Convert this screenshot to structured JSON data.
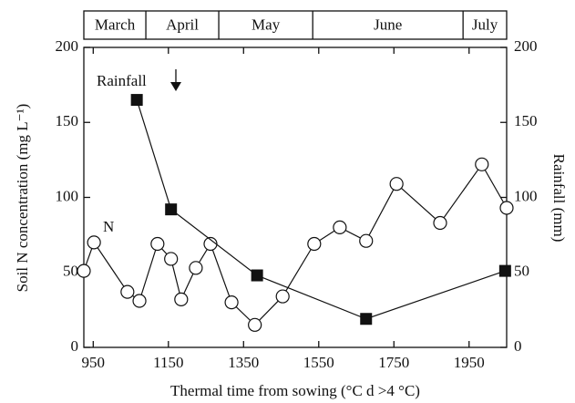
{
  "chart_data": {
    "type": "line",
    "x_label": "Thermal time from sowing (°C d >4 °C)",
    "y_label": "Soil N concentration (mg L⁻¹)",
    "y2_label": "Rainfall (mm)",
    "months": [
      "March",
      "April",
      "May",
      "June",
      "July"
    ],
    "month_bounds": [
      925,
      1090,
      1284,
      1534,
      1934,
      2050
    ],
    "xlim": [
      925,
      2050
    ],
    "xticks": [
      950,
      1150,
      1350,
      1550,
      1750,
      1950
    ],
    "ylim": [
      0,
      200
    ],
    "yticks": [
      0,
      50,
      100,
      150,
      200
    ],
    "y2lim": [
      0,
      200
    ],
    "y2ticks": [
      0,
      50,
      100,
      150,
      200
    ],
    "annotations": {
      "rainfall": "Rainfall",
      "n": "N"
    },
    "series": [
      {
        "name": "N",
        "marker": "circle",
        "color": "#111111",
        "x": [
          925,
          952,
          1041,
          1073,
          1121,
          1157,
          1184,
          1223,
          1262,
          1318,
          1380,
          1454,
          1538,
          1606,
          1676,
          1757,
          1873,
          1984,
          2050
        ],
        "values": [
          51,
          70,
          37,
          31,
          69,
          59,
          32,
          53,
          69,
          30,
          15,
          34,
          69,
          80,
          71,
          109,
          83,
          122,
          93
        ]
      },
      {
        "name": "Rainfall",
        "marker": "square",
        "axis": "y2",
        "color": "#111111",
        "x": [
          1066,
          1157,
          1386,
          1676,
          2046
        ],
        "values": [
          165,
          92,
          48,
          19,
          51
        ]
      }
    ]
  }
}
